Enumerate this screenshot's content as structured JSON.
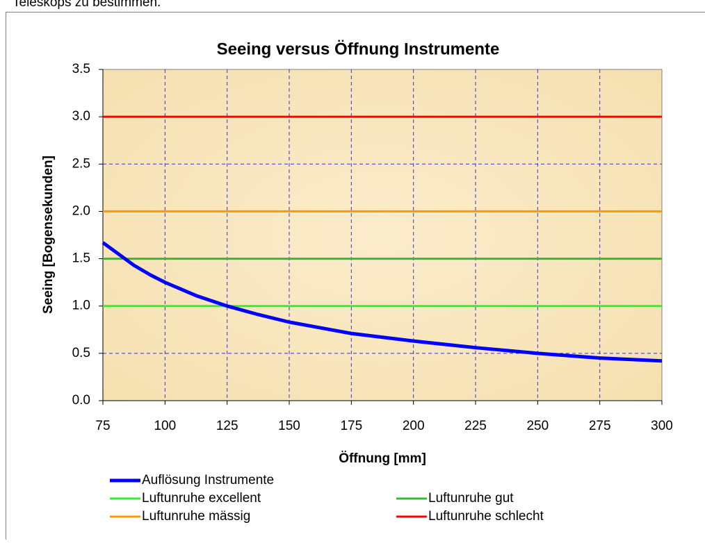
{
  "header_text": "Teleskops zu bestimmen.",
  "chart_data": {
    "type": "line",
    "title": "Seeing versus Öffnung Instrumente",
    "x_label": "Öffnung [mm]",
    "y_label": "Seeing [Bogensekunden]",
    "xlim": [
      75,
      300
    ],
    "xticks": [
      75,
      100,
      125,
      150,
      175,
      200,
      225,
      250,
      275,
      300
    ],
    "ylim": [
      0,
      3.5
    ],
    "yticks": [
      {
        "value": 0,
        "label": "0.0"
      },
      {
        "value": 0.5,
        "label": "0.5"
      },
      {
        "value": 1,
        "label": "1.0"
      },
      {
        "value": 1.5,
        "label": "1.5"
      },
      {
        "value": 2,
        "label": "2.0"
      },
      {
        "value": 2.5,
        "label": "2.5"
      },
      {
        "value": 3,
        "label": "3.0"
      },
      {
        "value": 3.5,
        "label": "3.5"
      }
    ],
    "grid": true,
    "series": [
      {
        "name": "Auflösung Instrumente",
        "color": "#0000ff",
        "x": [
          75,
          87.5,
          94,
          100,
          112.5,
          125,
          137.5,
          150,
          162.5,
          175,
          200,
          225,
          250,
          275,
          300
        ],
        "values": [
          1.67,
          1.43,
          1.33,
          1.25,
          1.11,
          1.0,
          0.91,
          0.83,
          0.77,
          0.71,
          0.63,
          0.56,
          0.5,
          0.45,
          0.42
        ]
      },
      {
        "name": "Luftunruhe excellent",
        "color": "#33ee33",
        "x": [
          75,
          300
        ],
        "values": [
          1,
          1
        ]
      },
      {
        "name": "Luftunruhe gut",
        "color": "#33bb33",
        "x": [
          75,
          300
        ],
        "values": [
          1.5,
          1.5
        ]
      },
      {
        "name": "Luftunruhe mässig",
        "color": "#ff9900",
        "x": [
          75,
          300
        ],
        "values": [
          2,
          2
        ]
      },
      {
        "name": "Luftunruhe schlecht",
        "color": "#ff0000",
        "x": [
          75,
          300
        ],
        "values": [
          3,
          3
        ]
      }
    ]
  }
}
